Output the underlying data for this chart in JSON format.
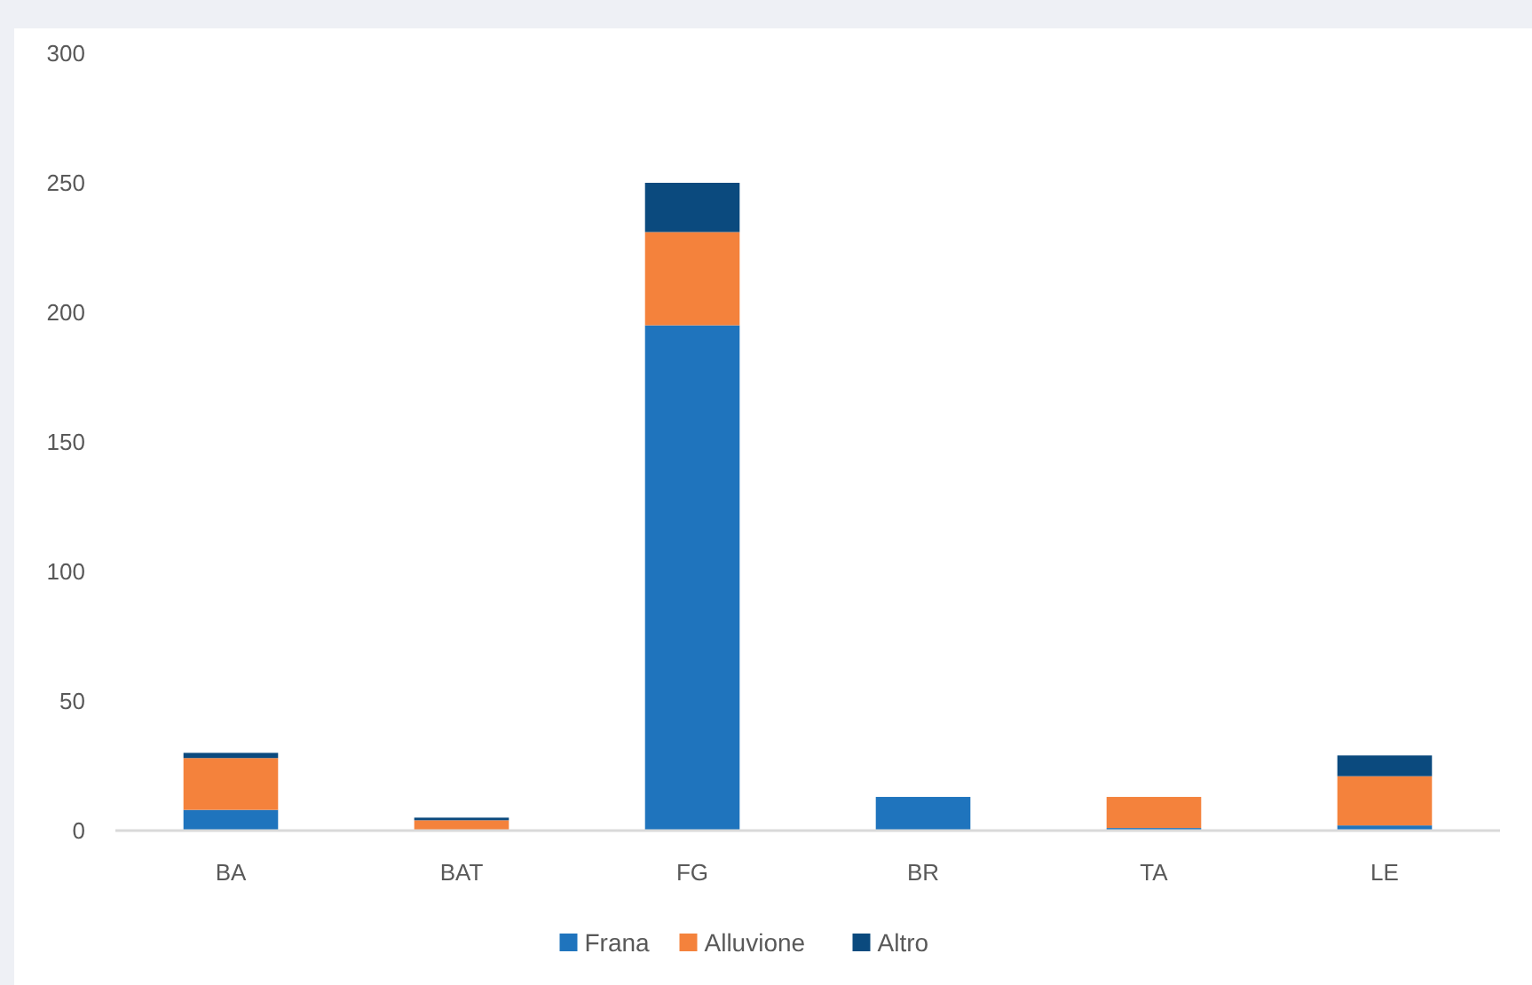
{
  "chart_data": {
    "type": "bar",
    "stacked": true,
    "categories": [
      "BA",
      "BAT",
      "FG",
      "BR",
      "TA",
      "LE"
    ],
    "series": [
      {
        "name": "Frana",
        "color": "#1f74bd",
        "values": [
          8,
          0,
          195,
          13,
          1,
          2
        ]
      },
      {
        "name": "Alluvione",
        "color": "#f4823c",
        "values": [
          20,
          4,
          36,
          0,
          12,
          19
        ]
      },
      {
        "name": "Altro",
        "color": "#0b4a7e",
        "values": [
          2,
          1,
          19,
          0,
          0,
          8
        ]
      }
    ],
    "ylim": [
      0,
      300
    ],
    "yticks": [
      0,
      50,
      100,
      150,
      200,
      250,
      300
    ],
    "grid": false,
    "legend": "bottom"
  }
}
